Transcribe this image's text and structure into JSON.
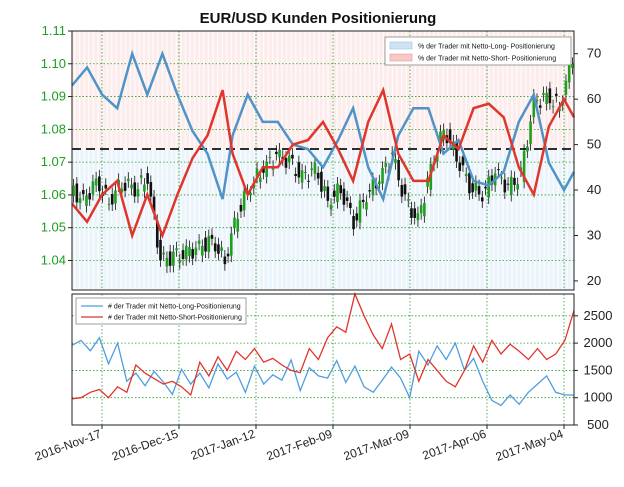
{
  "chart_data": [
    {
      "type": "line",
      "title": "EUR/USD Kunden Positionierung",
      "price_ticks": [
        "1.11",
        "1.10",
        "1.09",
        "1.08",
        "1.07",
        "1.06",
        "1.05",
        "1.04"
      ],
      "price_ylim": [
        1.031,
        1.11
      ],
      "pct_ticks": [
        "70",
        "60",
        "50",
        "40",
        "30",
        "20"
      ],
      "pct_ylim": [
        18,
        75
      ],
      "reference_line": 50,
      "legend": [
        "% der Trader mit Netto-Long- Positionierung",
        "% der Trader mit Netto-Short- Positionierung"
      ],
      "colors": {
        "long": "#4f93c7",
        "short": "#e0352b",
        "long_fill": "#dcebf7",
        "short_fill": "#fbdcdc",
        "price_axis": "#1e9e1e"
      },
      "grid": true,
      "legend_position": "top-right",
      "net_long_pct": [
        {
          "x": 0,
          "y": 63
        },
        {
          "x": 3,
          "y": 67
        },
        {
          "x": 6,
          "y": 61
        },
        {
          "x": 9,
          "y": 58
        },
        {
          "x": 12,
          "y": 70
        },
        {
          "x": 15,
          "y": 61
        },
        {
          "x": 18,
          "y": 70
        },
        {
          "x": 21,
          "y": 61
        },
        {
          "x": 24,
          "y": 53
        },
        {
          "x": 27,
          "y": 48
        },
        {
          "x": 30,
          "y": 38
        },
        {
          "x": 32,
          "y": 52
        },
        {
          "x": 35,
          "y": 61
        },
        {
          "x": 38,
          "y": 55
        },
        {
          "x": 41,
          "y": 55
        },
        {
          "x": 44,
          "y": 50
        },
        {
          "x": 47,
          "y": 49
        },
        {
          "x": 50,
          "y": 45
        },
        {
          "x": 53,
          "y": 51
        },
        {
          "x": 56,
          "y": 58
        },
        {
          "x": 59,
          "y": 45
        },
        {
          "x": 62,
          "y": 38
        },
        {
          "x": 65,
          "y": 52
        },
        {
          "x": 68,
          "y": 58
        },
        {
          "x": 71,
          "y": 58
        },
        {
          "x": 74,
          "y": 48
        },
        {
          "x": 77,
          "y": 51
        },
        {
          "x": 80,
          "y": 42
        },
        {
          "x": 83,
          "y": 41
        },
        {
          "x": 86,
          "y": 44
        },
        {
          "x": 89,
          "y": 55
        },
        {
          "x": 92,
          "y": 61
        },
        {
          "x": 95,
          "y": 46
        },
        {
          "x": 98,
          "y": 40
        },
        {
          "x": 100,
          "y": 44
        }
      ],
      "net_short_pct": [
        {
          "x": 0,
          "y": 37
        },
        {
          "x": 3,
          "y": 33
        },
        {
          "x": 6,
          "y": 39
        },
        {
          "x": 9,
          "y": 42
        },
        {
          "x": 12,
          "y": 30
        },
        {
          "x": 15,
          "y": 39
        },
        {
          "x": 18,
          "y": 30
        },
        {
          "x": 21,
          "y": 39
        },
        {
          "x": 24,
          "y": 47
        },
        {
          "x": 27,
          "y": 52
        },
        {
          "x": 30,
          "y": 62
        },
        {
          "x": 32,
          "y": 48
        },
        {
          "x": 35,
          "y": 39
        },
        {
          "x": 38,
          "y": 45
        },
        {
          "x": 41,
          "y": 45
        },
        {
          "x": 44,
          "y": 50
        },
        {
          "x": 47,
          "y": 51
        },
        {
          "x": 50,
          "y": 55
        },
        {
          "x": 53,
          "y": 49
        },
        {
          "x": 56,
          "y": 42
        },
        {
          "x": 59,
          "y": 55
        },
        {
          "x": 62,
          "y": 62
        },
        {
          "x": 65,
          "y": 48
        },
        {
          "x": 68,
          "y": 42
        },
        {
          "x": 71,
          "y": 42
        },
        {
          "x": 74,
          "y": 52
        },
        {
          "x": 77,
          "y": 49
        },
        {
          "x": 80,
          "y": 58
        },
        {
          "x": 83,
          "y": 59
        },
        {
          "x": 86,
          "y": 56
        },
        {
          "x": 89,
          "y": 45
        },
        {
          "x": 92,
          "y": 39
        },
        {
          "x": 95,
          "y": 54
        },
        {
          "x": 98,
          "y": 60
        },
        {
          "x": 100,
          "y": 56
        }
      ],
      "price_close": [
        {
          "x": 0,
          "y": 1.062
        },
        {
          "x": 4,
          "y": 1.058
        },
        {
          "x": 8,
          "y": 1.064
        },
        {
          "x": 12,
          "y": 1.058
        },
        {
          "x": 16,
          "y": 1.064
        },
        {
          "x": 20,
          "y": 1.062
        },
        {
          "x": 24,
          "y": 1.065
        },
        {
          "x": 28,
          "y": 1.04
        },
        {
          "x": 32,
          "y": 1.041
        },
        {
          "x": 36,
          "y": 1.042
        },
        {
          "x": 40,
          "y": 1.044
        },
        {
          "x": 44,
          "y": 1.046
        },
        {
          "x": 48,
          "y": 1.04
        },
        {
          "x": 52,
          "y": 1.055
        },
        {
          "x": 56,
          "y": 1.063
        },
        {
          "x": 60,
          "y": 1.068
        },
        {
          "x": 64,
          "y": 1.072
        },
        {
          "x": 68,
          "y": 1.07
        },
        {
          "x": 72,
          "y": 1.065
        },
        {
          "x": 76,
          "y": 1.068
        },
        {
          "x": 80,
          "y": 1.058
        },
        {
          "x": 84,
          "y": 1.062
        },
        {
          "x": 88,
          "y": 1.052
        },
        {
          "x": 92,
          "y": 1.06
        },
        {
          "x": 96,
          "y": 1.065
        },
        {
          "x": 100,
          "y": 1.072
        },
        {
          "x": 104,
          "y": 1.058
        },
        {
          "x": 108,
          "y": 1.052
        },
        {
          "x": 112,
          "y": 1.068
        },
        {
          "x": 116,
          "y": 1.08
        },
        {
          "x": 120,
          "y": 1.072
        },
        {
          "x": 124,
          "y": 1.063
        },
        {
          "x": 128,
          "y": 1.06
        },
        {
          "x": 132,
          "y": 1.067
        },
        {
          "x": 136,
          "y": 1.062
        },
        {
          "x": 140,
          "y": 1.066
        },
        {
          "x": 144,
          "y": 1.088
        },
        {
          "x": 148,
          "y": 1.09
        },
        {
          "x": 152,
          "y": 1.087
        },
        {
          "x": 156,
          "y": 1.102
        }
      ]
    },
    {
      "type": "line",
      "x_ticks": [
        "2016-Nov-17",
        "2016-Dec-15",
        "2017-Jan-12",
        "2017-Feb-09",
        "2017-Mar-09",
        "2017-Apr-06",
        "2017-May-04"
      ],
      "y_ticks": [
        "2500",
        "2000",
        "1500",
        "1000",
        "500"
      ],
      "ylim": [
        500,
        2900
      ],
      "legend": [
        "# der Trader mit Netto-Long-Positionierung",
        "# der Trader mit Netto-Short-Positionierung"
      ],
      "legend_position": "top-left",
      "grid": true,
      "series": [
        {
          "name": "# der Trader mit Netto-Long-Positionierung",
          "values": [
            1960,
            2050,
            1860,
            2100,
            1620,
            2000,
            1300,
            1450,
            1220,
            1480,
            1290,
            1060,
            1520,
            1250,
            1450,
            1180,
            1620,
            1340,
            1470,
            1100,
            1580,
            1250,
            1420,
            1320,
            1690,
            1130,
            1550,
            1400,
            1360,
            1680,
            1280,
            1580,
            1200,
            1100,
            1320,
            1560,
            1360,
            1000,
            1850,
            1600,
            1950,
            1700,
            2000,
            1500,
            1720,
            1300,
            950,
            860,
            1050,
            880,
            1100,
            1250,
            1400,
            1100,
            1050,
            1050
          ]
        },
        {
          "name": "# der Trader mit Netto-Short-Positionierung",
          "values": [
            980,
            1000,
            1100,
            1150,
            1000,
            1200,
            1100,
            1600,
            1450,
            1350,
            1250,
            1300,
            1200,
            1050,
            1650,
            1400,
            1750,
            1500,
            1850,
            1700,
            1900,
            1650,
            1720,
            1600,
            1500,
            1460,
            1900,
            1700,
            2100,
            2300,
            2200,
            2900,
            2500,
            2150,
            1900,
            2350,
            1700,
            1800,
            1300,
            1700,
            1500,
            1300,
            1200,
            1500,
            1950,
            1650,
            2050,
            1800,
            1980,
            1850,
            1700,
            1900,
            1700,
            1800,
            2050,
            2600
          ]
        }
      ]
    }
  ]
}
